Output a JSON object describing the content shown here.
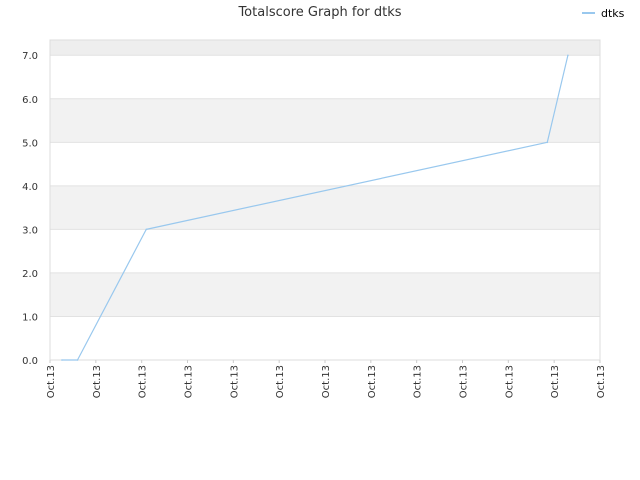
{
  "chart_data": {
    "type": "line",
    "title": "Totalscore Graph for dtks",
    "xlabel": "",
    "ylabel": "",
    "x_tick_labels": [
      "Oct.13",
      "Oct.13",
      "Oct.13",
      "Oct.13",
      "Oct.13",
      "Oct.13",
      "Oct.13",
      "Oct.13",
      "Oct.13",
      "Oct.13",
      "Oct.13",
      "Oct.13",
      "Oct.13"
    ],
    "y_tick_labels": [
      "0.0",
      "1.0",
      "2.0",
      "3.0",
      "4.0",
      "5.0",
      "6.0",
      "7.0"
    ],
    "ylim": [
      0,
      7.35
    ],
    "grid": true,
    "legend_position": "top-right",
    "series": [
      {
        "name": "dtks",
        "color": "#99c8ee",
        "points": [
          {
            "x": 0.26,
            "y": 0
          },
          {
            "x": 0.6,
            "y": 0
          },
          {
            "x": 2.1,
            "y": 3
          },
          {
            "x": 10.85,
            "y": 5
          },
          {
            "x": 11.3,
            "y": 7
          }
        ]
      }
    ]
  }
}
